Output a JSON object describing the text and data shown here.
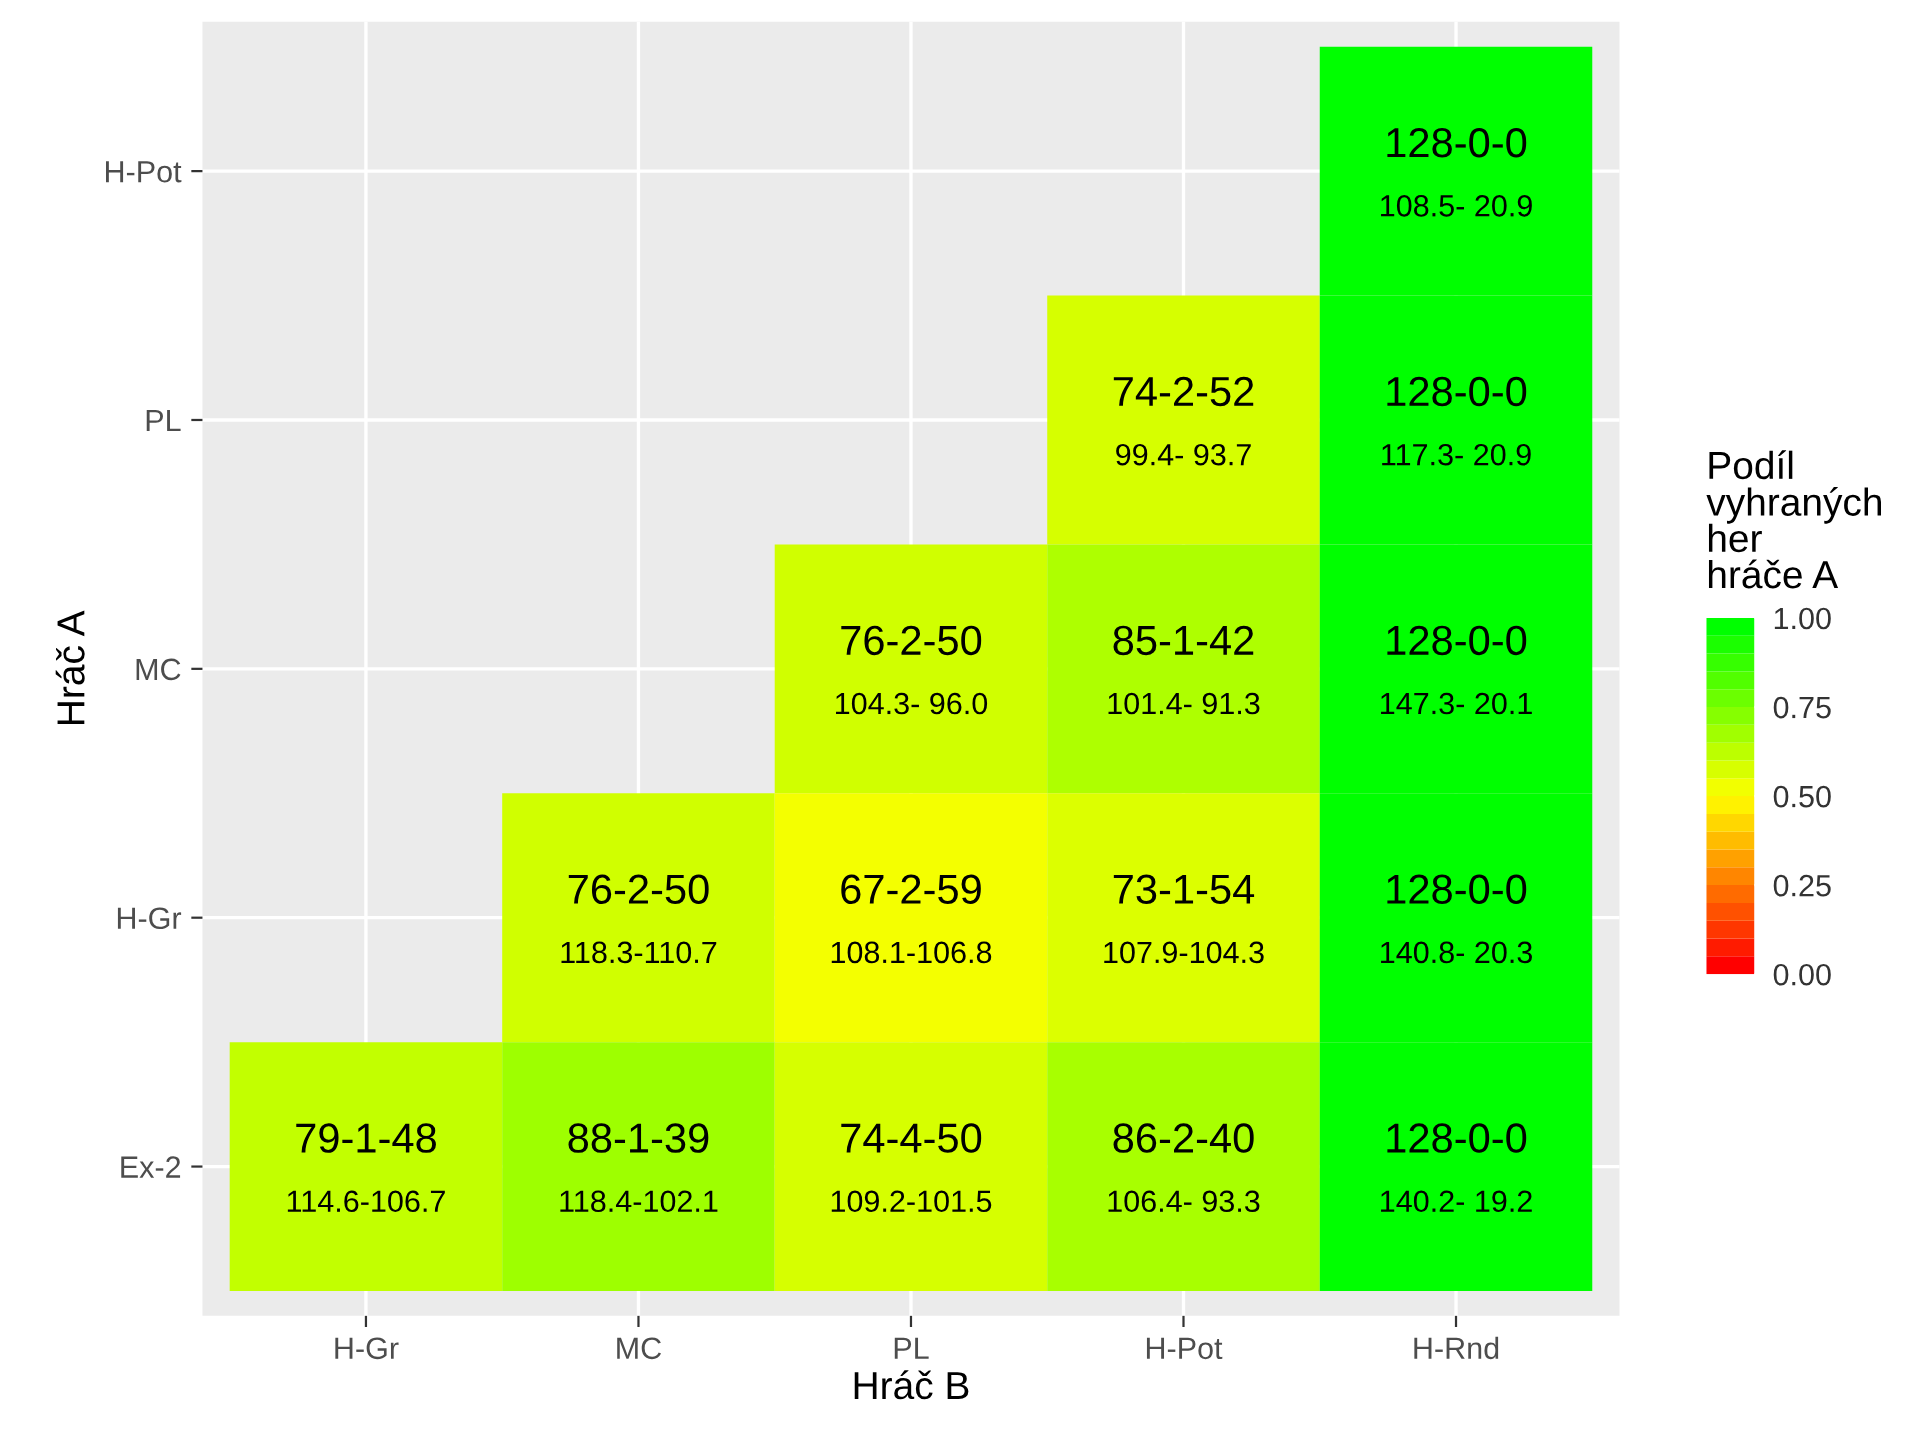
{
  "chart_data": {
    "type": "heatmap",
    "xlabel": "Hráč B",
    "ylabel": "Hráč A",
    "clabel": "Podíl\nvyhraných\nher\nhráče A",
    "categories": [
      "H-Gr",
      "MC",
      "PL",
      "H-Pot",
      "H-Rnd"
    ],
    "y_categories": [
      "H-Pot",
      "PL",
      "MC",
      "H-Gr",
      "Ex-2"
    ],
    "cells": [
      [
        null,
        null,
        null,
        null,
        1.0
      ],
      [
        null,
        null,
        null,
        0.58,
        1.0
      ],
      [
        null,
        null,
        0.59,
        0.66,
        1.0
      ],
      [
        null,
        0.59,
        0.52,
        0.57,
        1.0
      ],
      [
        0.62,
        0.69,
        0.58,
        0.67,
        1.0
      ]
    ],
    "cell_labels": [
      [
        null,
        null,
        null,
        null,
        "128-0-0\n108.5- 20.9"
      ],
      [
        null,
        null,
        null,
        "74-2-52\n99.4- 93.7",
        "128-0-0\n117.3- 20.9"
      ],
      [
        null,
        null,
        "76-2-50\n104.3- 96.0",
        "85-1-42\n101.4- 91.3",
        "128-0-0\n147.3- 20.1"
      ],
      [
        null,
        "76-2-50\n118.3-110.7",
        "67-2-59\n108.1-106.8",
        "73-1-54\n107.9-104.3",
        "128-0-0\n140.8- 20.3"
      ],
      [
        "79-1-48\n114.6-106.7",
        "88-1-39\n118.4-102.1",
        "74-4-50\n109.2-101.5",
        "86-2-40\n106.4- 93.3",
        "128-0-0\n140.2- 19.2"
      ]
    ],
    "clim": [
      0,
      1
    ],
    "cticks": [
      {
        "value": 0,
        "label": "0.00"
      },
      {
        "value": 0.25,
        "label": "0.25"
      },
      {
        "value": 0.5,
        "label": "0.50"
      },
      {
        "value": 0.75,
        "label": "0.75"
      },
      {
        "value": 1,
        "label": "1.00"
      }
    ],
    "grid": true
  }
}
